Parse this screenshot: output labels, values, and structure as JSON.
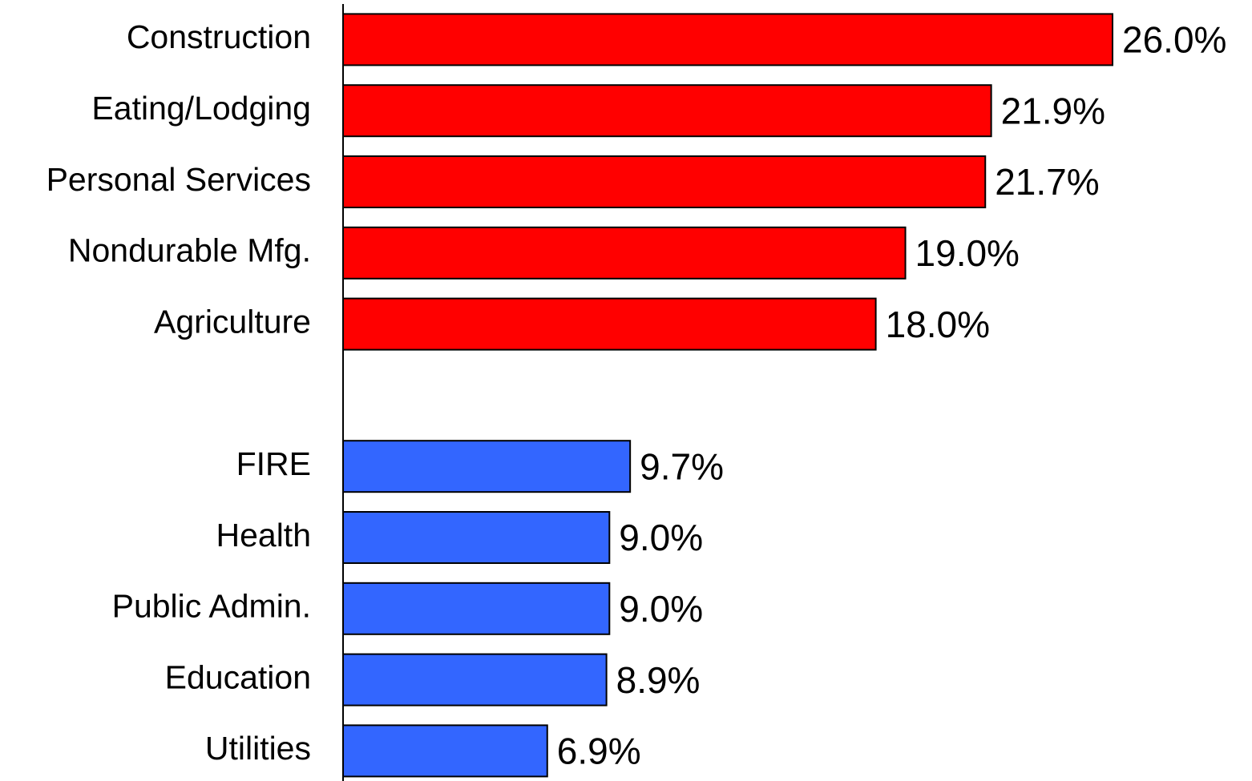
{
  "chart_data": {
    "type": "hbar",
    "categories": [
      "Construction",
      "Eating/Lodging",
      "Personal Services",
      "Nondurable Mfg.",
      "Agriculture",
      null,
      "FIRE",
      "Health",
      "Public Admin.",
      "Education",
      "Utilities"
    ],
    "values": [
      26.0,
      21.9,
      21.7,
      19.0,
      18.0,
      null,
      9.7,
      9.0,
      9.0,
      8.9,
      6.9
    ],
    "value_labels": [
      "26.0%",
      "21.9%",
      "21.7%",
      "19.0%",
      "18.0%",
      null,
      "9.7%",
      "9.0%",
      "9.0%",
      "8.9%",
      "6.9%"
    ],
    "colors": [
      "#ff0000",
      "#ff0000",
      "#ff0000",
      "#ff0000",
      "#ff0000",
      null,
      "#3366ff",
      "#3366ff",
      "#3366ff",
      "#3366ff",
      "#3366ff"
    ],
    "xlim": [
      0,
      26
    ]
  }
}
